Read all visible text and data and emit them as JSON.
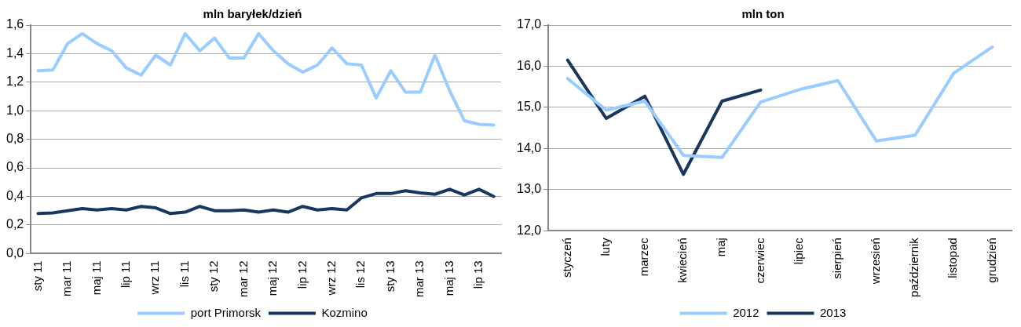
{
  "chart_data": [
    {
      "type": "line",
      "title": "mln baryłek/dzień",
      "categories": [
        "sty 11",
        null,
        "mar 11",
        null,
        "maj 11",
        null,
        "lip 11",
        null,
        "wrz 11",
        null,
        "lis 11",
        null,
        "sty 12",
        null,
        "mar 12",
        null,
        "maj 12",
        null,
        "lip 12",
        null,
        "wrz 12",
        null,
        "lis 12",
        null,
        "sty 13",
        null,
        "mar 13",
        null,
        "maj 13",
        null,
        "lip 13",
        null
      ],
      "series": [
        {
          "name": "port Primorsk",
          "color": "#99ccff",
          "values": [
            1.28,
            1.285,
            1.47,
            1.54,
            1.47,
            1.42,
            1.3,
            1.25,
            1.39,
            1.32,
            1.54,
            1.42,
            1.51,
            1.37,
            1.37,
            1.54,
            1.42,
            1.33,
            1.27,
            1.32,
            1.44,
            1.33,
            1.32,
            1.09,
            1.28,
            1.13,
            1.13,
            1.39,
            1.14,
            0.93,
            0.905,
            0.9
          ]
        },
        {
          "name": "Kozmino",
          "color": "#17375e",
          "values": [
            0.28,
            0.285,
            0.3,
            0.315,
            0.305,
            0.315,
            0.305,
            0.33,
            0.32,
            0.28,
            0.29,
            0.33,
            0.3,
            0.3,
            0.305,
            0.29,
            0.305,
            0.29,
            0.33,
            0.305,
            0.315,
            0.305,
            0.39,
            0.42,
            0.42,
            0.44,
            0.425,
            0.415,
            0.45,
            0.41,
            0.45,
            0.4
          ]
        }
      ],
      "ylim": [
        0,
        1.6
      ],
      "yticks": [
        {
          "value": 0,
          "label": "0,0"
        },
        {
          "value": 0.2,
          "label": "0,2"
        },
        {
          "value": 0.4,
          "label": "0,4"
        },
        {
          "value": 0.6,
          "label": "0,6"
        },
        {
          "value": 0.8,
          "label": "0,8"
        },
        {
          "value": 1.0,
          "label": "1,0"
        },
        {
          "value": 1.2,
          "label": "1,2"
        },
        {
          "value": 1.4,
          "label": "1,4"
        },
        {
          "value": 1.6,
          "label": "1,6"
        }
      ],
      "grid": "y",
      "legend": "bottom",
      "marker": "none",
      "line_style": "solid"
    },
    {
      "type": "line",
      "title": "mln ton",
      "categories": [
        "styczeń",
        "luty",
        "marzec",
        "kwiecień",
        "maj",
        "czerwiec",
        "lipiec",
        "sierpień",
        "wrzesień",
        "październik",
        "listopad",
        "grudzień"
      ],
      "series": [
        {
          "name": "2012",
          "color": "#99ccff",
          "values": [
            15.7,
            14.93,
            15.15,
            13.83,
            13.78,
            15.13,
            15.43,
            15.65,
            14.18,
            14.32,
            15.83,
            16.47
          ]
        },
        {
          "name": "2013",
          "color": "#17375e",
          "values": [
            16.15,
            14.73,
            15.27,
            13.37,
            15.15,
            15.42,
            null,
            null,
            null,
            null,
            null,
            null
          ]
        }
      ],
      "ylim": [
        12,
        17
      ],
      "yticks": [
        {
          "value": 12,
          "label": "12,0"
        },
        {
          "value": 13,
          "label": "13,0"
        },
        {
          "value": 14,
          "label": "14,0"
        },
        {
          "value": 15,
          "label": "15,0"
        },
        {
          "value": 16,
          "label": "16,0"
        },
        {
          "value": 17,
          "label": "17,0"
        }
      ],
      "grid": "y",
      "legend": "bottom",
      "marker": "none",
      "line_style": "solid"
    }
  ]
}
